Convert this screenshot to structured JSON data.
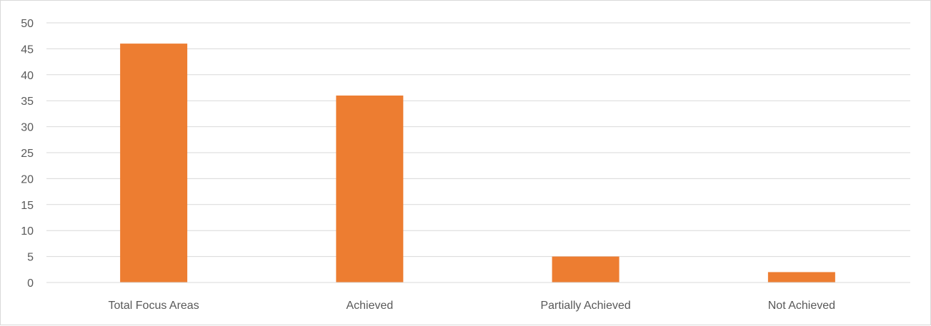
{
  "chart_data": {
    "type": "bar",
    "title": "",
    "xlabel": "",
    "ylabel": "",
    "categories": [
      "Total Focus Areas",
      "Achieved",
      "Partially Achieved",
      "Not Achieved"
    ],
    "values": [
      46,
      36,
      5,
      2
    ],
    "ylim": [
      0,
      50
    ],
    "yticks": [
      0,
      5,
      10,
      15,
      20,
      25,
      30,
      35,
      40,
      45,
      50
    ],
    "grid": true,
    "legend": "none",
    "bar_color": "#ed7d31"
  }
}
